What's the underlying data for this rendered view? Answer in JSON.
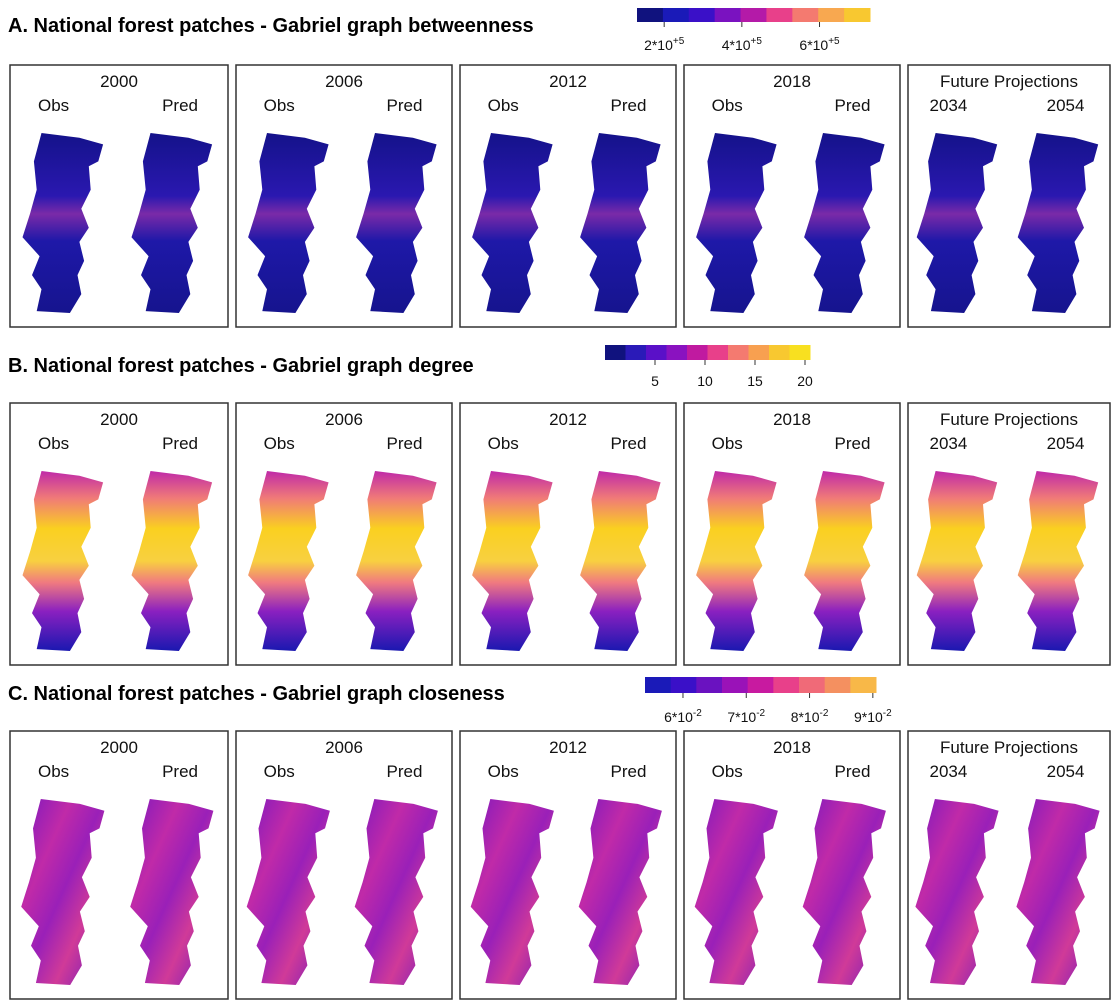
{
  "sections": [
    {
      "title": "A. National forest patches - Gabriel graph betweenness",
      "colorbar": {
        "colors": [
          "#10127e",
          "#1a1ab8",
          "#3a10c8",
          "#7a12c0",
          "#b41aa8",
          "#e8408a",
          "#f47a70",
          "#f8a850",
          "#f8c830"
        ],
        "lim": [
          130000,
          730000
        ],
        "ticks": [
          {
            "value": 200000,
            "base": "2*10",
            "exp": "+5"
          },
          {
            "value": 400000,
            "base": "4*10",
            "exp": "+5"
          },
          {
            "value": 600000,
            "base": "6*10",
            "exp": "+5"
          }
        ]
      },
      "panels": [
        {
          "heading": "2000",
          "left": "Obs",
          "right": "Pred"
        },
        {
          "heading": "2006",
          "left": "Obs",
          "right": "Pred"
        },
        {
          "heading": "2012",
          "left": "Obs",
          "right": "Pred"
        },
        {
          "heading": "2018",
          "left": "Obs",
          "right": "Pred"
        },
        {
          "heading": "Future Projections",
          "left": "2034",
          "right": "2054"
        }
      ]
    },
    {
      "title": "B. National forest patches - Gabriel graph degree",
      "colorbar": {
        "colors": [
          "#10127e",
          "#2a1ab8",
          "#5a10c8",
          "#8a12c0",
          "#c01aa0",
          "#e8408a",
          "#f47a70",
          "#f8a050",
          "#f8c830",
          "#f8e020"
        ],
        "lim": [
          0,
          20.5
        ],
        "ticks": [
          5,
          10,
          15,
          20
        ]
      },
      "panels": [
        {
          "heading": "2000",
          "left": "Obs",
          "right": "Pred"
        },
        {
          "heading": "2006",
          "left": "Obs",
          "right": "Pred"
        },
        {
          "heading": "2012",
          "left": "Obs",
          "right": "Pred"
        },
        {
          "heading": "2018",
          "left": "Obs",
          "right": "Pred"
        },
        {
          "heading": "Future Projections",
          "left": "2034",
          "right": "2054"
        }
      ]
    },
    {
      "title": "C. National forest patches - Gabriel graph closeness",
      "colorbar": {
        "colors": [
          "#1a1ab8",
          "#3a10c8",
          "#6a12c0",
          "#9a12b8",
          "#c81aa0",
          "#e8408a",
          "#f06a78",
          "#f49060",
          "#f8b848"
        ],
        "lim": [
          0.054,
          0.0905
        ],
        "ticks": [
          {
            "value": 0.06,
            "base": "6*10",
            "exp": "-2"
          },
          {
            "value": 0.07,
            "base": "7*10",
            "exp": "-2"
          },
          {
            "value": 0.08,
            "base": "8*10",
            "exp": "-2"
          },
          {
            "value": 0.09,
            "base": "9*10",
            "exp": "-2"
          }
        ]
      },
      "panels": [
        {
          "heading": "2000",
          "left": "Obs",
          "right": "Pred"
        },
        {
          "heading": "2006",
          "left": "Obs",
          "right": "Pred"
        },
        {
          "heading": "2012",
          "left": "Obs",
          "right": "Pred"
        },
        {
          "heading": "2018",
          "left": "Obs",
          "right": "Pred"
        },
        {
          "heading": "Future Projections",
          "left": "2034",
          "right": "2054"
        }
      ]
    }
  ]
}
